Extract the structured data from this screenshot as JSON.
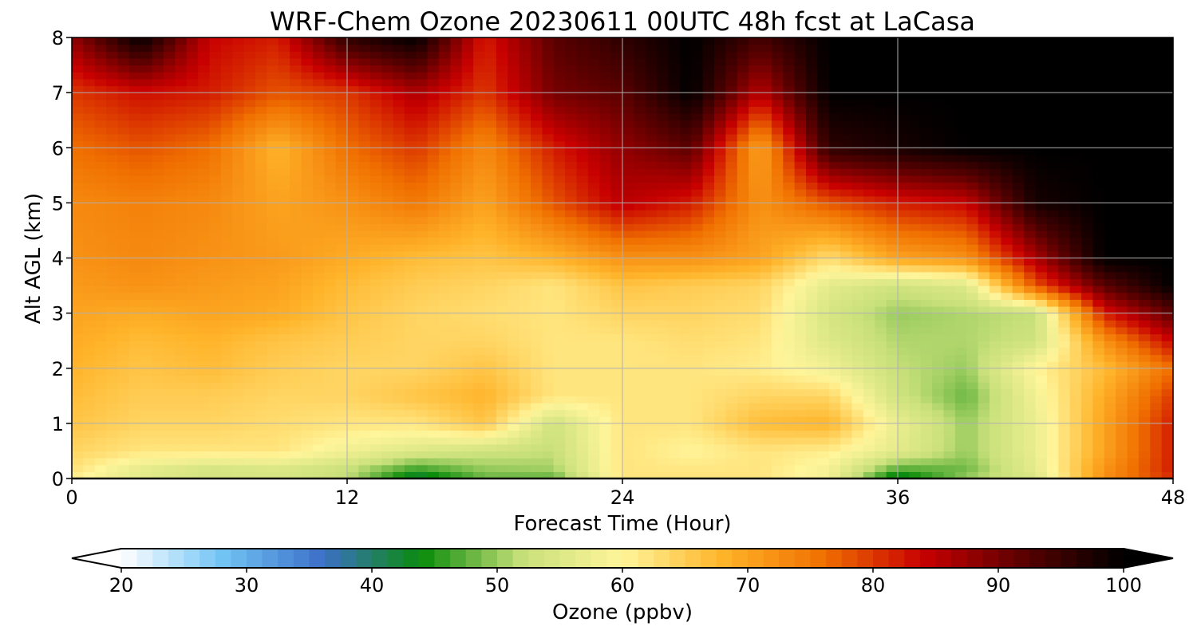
{
  "chart_data": {
    "type": "heatmap",
    "title": "WRF-Chem Ozone  20230611 00UTC 48h fcst at LaCasa",
    "xlabel": "Forecast Time (Hour)",
    "ylabel": "Alt AGL (km)",
    "xlim": [
      0,
      48
    ],
    "ylim": [
      0,
      8
    ],
    "x_ticks": [
      "0",
      "12",
      "24",
      "36",
      "48"
    ],
    "y_ticks": [
      "0",
      "1",
      "2",
      "3",
      "4",
      "5",
      "6",
      "7",
      "8"
    ],
    "grid": true,
    "colorbar": {
      "label": "Ozone  (ppbv)",
      "min": 20,
      "max": 100,
      "ticks": [
        "20",
        "30",
        "40",
        "50",
        "60",
        "70",
        "80",
        "90",
        "100"
      ],
      "extend": "both",
      "colors": [
        "#ffffff",
        "#72c4f5",
        "#3c70c8",
        "#0a8c0a",
        "#c8e07a",
        "#fff59a",
        "#ffb42a",
        "#f07000",
        "#c80000",
        "#5a0000",
        "#000000"
      ]
    },
    "x_hours": [
      0,
      3,
      6,
      9,
      12,
      15,
      18,
      21,
      24,
      27,
      30,
      33,
      36,
      39,
      42,
      45,
      48
    ],
    "z_levels_km": [
      0,
      0.1,
      0.5,
      1,
      1.5,
      2,
      2.5,
      3,
      3.5,
      4,
      5,
      6,
      7,
      8
    ],
    "values_ppbv": [
      [
        60,
        58,
        57,
        57,
        54,
        40,
        48,
        46,
        62,
        62,
        62,
        59,
        40,
        52,
        54,
        72,
        80
      ],
      [
        62,
        55,
        52,
        53,
        51,
        44,
        49,
        50,
        62,
        62,
        62,
        58,
        45,
        48,
        56,
        72,
        82
      ],
      [
        64,
        62,
        62,
        62,
        58,
        55,
        53,
        52,
        62,
        60,
        62,
        61,
        56,
        50,
        57,
        70,
        82
      ],
      [
        66,
        64,
        64,
        63,
        62,
        62,
        66,
        53,
        62,
        62,
        67,
        68,
        57,
        50,
        57,
        70,
        82
      ],
      [
        67,
        65,
        65,
        64,
        64,
        66,
        68,
        62,
        62,
        62,
        64,
        64,
        53,
        48,
        58,
        69,
        80
      ],
      [
        68,
        66,
        67,
        65,
        64,
        64,
        66,
        62,
        62,
        62,
        61,
        58,
        52,
        50,
        60,
        67,
        76
      ],
      [
        69,
        67,
        68,
        66,
        65,
        64,
        64,
        62,
        62,
        63,
        62,
        55,
        51,
        51,
        53,
        72,
        84
      ],
      [
        70,
        69,
        70,
        69,
        66,
        64,
        63,
        62,
        64,
        64,
        63,
        54,
        50,
        51,
        52,
        82,
        92
      ],
      [
        71,
        72,
        71,
        70,
        67,
        65,
        64,
        62,
        66,
        65,
        64,
        56,
        53,
        55,
        78,
        92,
        100
      ],
      [
        72,
        73,
        72,
        71,
        69,
        67,
        66,
        68,
        72,
        72,
        70,
        63,
        70,
        72,
        86,
        100,
        100
      ],
      [
        73,
        74,
        73,
        70,
        72,
        75,
        70,
        78,
        85,
        82,
        72,
        78,
        82,
        84,
        98,
        100,
        100
      ],
      [
        76,
        78,
        76,
        68,
        76,
        80,
        73,
        82,
        88,
        92,
        70,
        96,
        98,
        100,
        100,
        100,
        100
      ],
      [
        80,
        83,
        82,
        78,
        80,
        86,
        80,
        90,
        92,
        100,
        85,
        100,
        100,
        100,
        100,
        100,
        100
      ],
      [
        88,
        100,
        84,
        82,
        96,
        100,
        82,
        92,
        96,
        100,
        94,
        100,
        100,
        100,
        100,
        100,
        100
      ]
    ]
  }
}
